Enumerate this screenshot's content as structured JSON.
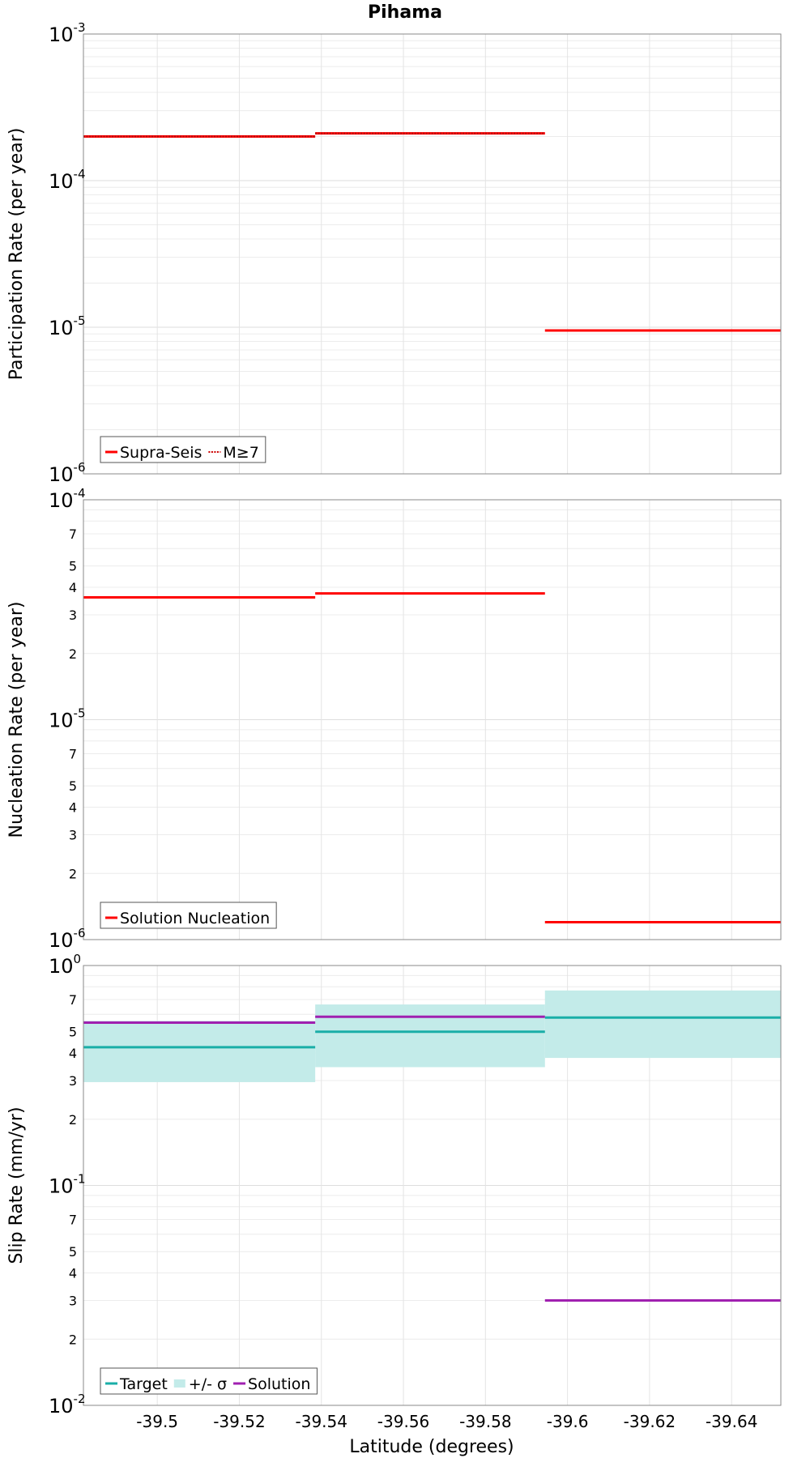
{
  "title": "Pihama",
  "x_axis": {
    "label": "Latitude (degrees)",
    "ticks": [
      -39.5,
      -39.52,
      -39.54,
      -39.56,
      -39.58,
      -39.6,
      -39.62,
      -39.64
    ],
    "tick_labels": [
      "-39.5",
      "-39.52",
      "-39.54",
      "-39.56",
      "-39.58",
      "-39.6",
      "-39.62",
      "-39.64"
    ],
    "lim": [
      -39.482,
      -39.652
    ]
  },
  "chart_data": [
    {
      "type": "line",
      "id": "participation",
      "ylabel": "Participation Rate (per year)",
      "yscale": "log",
      "ylim": [
        1e-06,
        0.001
      ],
      "decade_labels": [
        {
          "value": 1e-06,
          "base": "10",
          "exp": "-6"
        },
        {
          "value": 1e-05,
          "base": "10",
          "exp": "-5"
        },
        {
          "value": 0.0001,
          "base": "10",
          "exp": "-4"
        },
        {
          "value": 0.001,
          "base": "10",
          "exp": "-3"
        }
      ],
      "minor_labels": [],
      "series": [
        {
          "name": "Supra-Seis",
          "style": "solid",
          "color": "#ff0000",
          "segments": [
            {
              "x0": -39.482,
              "x1": -39.5385,
              "y": 0.0002
            },
            {
              "x0": -39.5385,
              "x1": -39.5945,
              "y": 0.00021
            },
            {
              "x0": -39.5945,
              "x1": -39.652,
              "y": 9.5e-06
            }
          ]
        },
        {
          "name": "M≥7",
          "style": "dotted",
          "color": "#ff0000",
          "segments": [
            {
              "x0": -39.482,
              "x1": -39.5385,
              "y": 0.0002
            },
            {
              "x0": -39.5385,
              "x1": -39.5945,
              "y": 0.00021
            }
          ]
        }
      ],
      "legend": [
        {
          "label": "Supra-Seis",
          "kind": "line",
          "color": "#ff0000"
        },
        {
          "label": "M≥7",
          "kind": "dotted",
          "color": "#ff0000"
        }
      ],
      "legend_position": "bottom-left"
    },
    {
      "type": "line",
      "id": "nucleation",
      "ylabel": "Nucleation Rate (per year)",
      "yscale": "log",
      "ylim": [
        1e-06,
        0.0001
      ],
      "decade_labels": [
        {
          "value": 1e-06,
          "base": "10",
          "exp": "-6"
        },
        {
          "value": 1e-05,
          "base": "10",
          "exp": "-5"
        },
        {
          "value": 0.0001,
          "base": "10",
          "exp": "-4"
        }
      ],
      "minor_labels": [
        {
          "value": 2e-06,
          "label": "2"
        },
        {
          "value": 3e-06,
          "label": "3"
        },
        {
          "value": 4e-06,
          "label": "4"
        },
        {
          "value": 5e-06,
          "label": "5"
        },
        {
          "value": 7e-06,
          "label": "7"
        },
        {
          "value": 2e-05,
          "label": "2"
        },
        {
          "value": 3e-05,
          "label": "3"
        },
        {
          "value": 4e-05,
          "label": "4"
        },
        {
          "value": 5e-05,
          "label": "5"
        },
        {
          "value": 7e-05,
          "label": "7"
        }
      ],
      "series": [
        {
          "name": "Solution Nucleation",
          "style": "solid",
          "color": "#ff0000",
          "segments": [
            {
              "x0": -39.482,
              "x1": -39.5385,
              "y": 3.6e-05
            },
            {
              "x0": -39.5385,
              "x1": -39.5945,
              "y": 3.75e-05
            },
            {
              "x0": -39.5945,
              "x1": -39.652,
              "y": 1.2e-06
            }
          ]
        }
      ],
      "legend": [
        {
          "label": "Solution Nucleation",
          "kind": "line",
          "color": "#ff0000"
        }
      ],
      "legend_position": "bottom-left"
    },
    {
      "type": "line",
      "id": "slip",
      "ylabel": "Slip Rate (mm/yr)",
      "yscale": "log",
      "ylim": [
        0.01,
        1
      ],
      "decade_labels": [
        {
          "value": 0.01,
          "base": "10",
          "exp": "-2"
        },
        {
          "value": 0.1,
          "base": "10",
          "exp": "-1"
        },
        {
          "value": 1,
          "base": "10",
          "exp": "0"
        }
      ],
      "minor_labels": [
        {
          "value": 0.02,
          "label": "2"
        },
        {
          "value": 0.03,
          "label": "3"
        },
        {
          "value": 0.04,
          "label": "4"
        },
        {
          "value": 0.05,
          "label": "5"
        },
        {
          "value": 0.07,
          "label": "7"
        },
        {
          "value": 0.2,
          "label": "2"
        },
        {
          "value": 0.3,
          "label": "3"
        },
        {
          "value": 0.4,
          "label": "4"
        },
        {
          "value": 0.5,
          "label": "5"
        },
        {
          "value": 0.7,
          "label": "7"
        }
      ],
      "bands": [
        {
          "name": "+/- σ",
          "color": "#c3ebe9",
          "segments": [
            {
              "x0": -39.482,
              "x1": -39.5385,
              "y0": 0.295,
              "y1": 0.56
            },
            {
              "x0": -39.5385,
              "x1": -39.5945,
              "y0": 0.345,
              "y1": 0.665
            },
            {
              "x0": -39.5945,
              "x1": -39.652,
              "y0": 0.38,
              "y1": 0.77
            }
          ]
        }
      ],
      "series": [
        {
          "name": "Target",
          "style": "solid",
          "color": "#1aaea8",
          "segments": [
            {
              "x0": -39.482,
              "x1": -39.5385,
              "y": 0.425
            },
            {
              "x0": -39.5385,
              "x1": -39.5945,
              "y": 0.5
            },
            {
              "x0": -39.5945,
              "x1": -39.652,
              "y": 0.58
            }
          ]
        },
        {
          "name": "Solution",
          "style": "solid",
          "color": "#a020b0",
          "segments": [
            {
              "x0": -39.482,
              "x1": -39.5385,
              "y": 0.55
            },
            {
              "x0": -39.5385,
              "x1": -39.5945,
              "y": 0.585
            },
            {
              "x0": -39.5945,
              "x1": -39.652,
              "y": 0.03
            }
          ]
        }
      ],
      "legend": [
        {
          "label": "Target",
          "kind": "line",
          "color": "#1aaea8"
        },
        {
          "label": "+/- σ",
          "kind": "box",
          "color": "#c3ebe9"
        },
        {
          "label": "Solution",
          "kind": "line",
          "color": "#a020b0"
        }
      ],
      "legend_position": "bottom-left"
    }
  ]
}
